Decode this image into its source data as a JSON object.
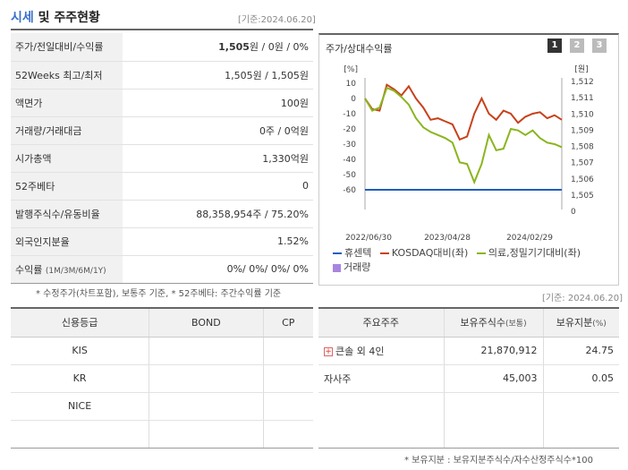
{
  "header": {
    "title_blue": "시세",
    "title_rest": " 및 주주현황",
    "date": "[기준:2024.06.20]"
  },
  "price_table": [
    {
      "label": "주가/전일대비/수익률",
      "value_bold": "1,505",
      "value_rest": "원 / 0원 / 0%"
    },
    {
      "label": "52Weeks 최고/최저",
      "value": "1,505원 / 1,505원"
    },
    {
      "label": "액면가",
      "value": "100원"
    },
    {
      "label": "거래량/거래대금",
      "value": "0주 / 0억원"
    },
    {
      "label": "시가총액",
      "value": "1,330억원"
    },
    {
      "label": "52주베타",
      "value": "0"
    },
    {
      "label": "발행주식수/유동비율",
      "value": "88,358,954주 / 75.20%"
    },
    {
      "label": "외국인지분율",
      "value": "1.52%"
    },
    {
      "label": "수익률",
      "label_small": "(1M/3M/6M/1Y)",
      "value": "0%/ 0%/ 0%/ 0%"
    }
  ],
  "note1": "* 수정주가(차트포함), 보통주 기준, * 52주베타: 주간수익률 기준",
  "chart": {
    "title": "주가/상대수익률",
    "tabs": [
      "1",
      "2",
      "3"
    ],
    "left_unit": "[%]",
    "right_unit": "[원]"
  },
  "chart_data": {
    "type": "line",
    "x_ticks": [
      "2022/06/30",
      "2023/04/28",
      "2024/02/29"
    ],
    "y_left_ticks": [
      10,
      0,
      -10,
      -20,
      -30,
      -40,
      -50,
      -60
    ],
    "y_right_ticks": [
      "1,512",
      "1,511",
      "1,510",
      "1,509",
      "1,508",
      "1,507",
      "1,506",
      "1,505",
      "0"
    ],
    "ylim_left": [
      -60,
      10
    ],
    "series": [
      {
        "name": "휴센텍",
        "color": "#1f5fbf",
        "axis": "left",
        "values": [
          -60,
          -60,
          -60,
          -60,
          -60,
          -60,
          -60,
          -60,
          -60,
          -60,
          -60,
          -60,
          -60,
          -60,
          -60,
          -60,
          -60,
          -60,
          -60,
          -60,
          -60,
          -60,
          -60,
          -60,
          -60,
          -60,
          -60,
          -60
        ]
      },
      {
        "name": "KOSDAQ대비(좌)",
        "color": "#c8411b",
        "axis": "left",
        "values": [
          0,
          -7,
          -8,
          9,
          6,
          2,
          8,
          0,
          -6,
          -14,
          -13,
          -15,
          -17,
          -27,
          -25,
          -10,
          0,
          -10,
          -14,
          -8,
          -10,
          -16,
          -12,
          -10,
          -9,
          -13,
          -11,
          -14
        ]
      },
      {
        "name": "의료,정밀기기대비(좌)",
        "color": "#8ab51e",
        "axis": "left",
        "values": [
          0,
          -8,
          -6,
          7,
          5,
          1,
          -4,
          -13,
          -19,
          -22,
          -24,
          -26,
          -29,
          -42,
          -43,
          -55,
          -43,
          -24,
          -34,
          -33,
          -20,
          -21,
          -24,
          -21,
          -26,
          -29,
          -30,
          -32
        ]
      }
    ],
    "legend": [
      {
        "name": "휴센텍",
        "color": "#1f5fbf",
        "kind": "line"
      },
      {
        "name": "KOSDAQ대비(좌)",
        "color": "#c8411b",
        "kind": "line"
      },
      {
        "name": "의료,정밀기기대비(좌)",
        "color": "#8ab51e",
        "kind": "line"
      },
      {
        "name": "거래량",
        "color": "#a985e0",
        "kind": "square"
      }
    ]
  },
  "date2": "[기준: 2024.06.20]",
  "credit_table": {
    "headers": [
      "신용등급",
      "BOND",
      "CP"
    ],
    "rows": [
      [
        "KIS",
        "",
        ""
      ],
      [
        "KR",
        "",
        ""
      ],
      [
        "NICE",
        "",
        ""
      ],
      [
        "",
        "",
        ""
      ]
    ]
  },
  "holder_table": {
    "headers": [
      "주요주주",
      "보유주식수",
      "(보통)",
      "보유지분",
      "(%)"
    ],
    "rows": [
      {
        "name": "큰솔 외 4인",
        "shares": "21,870,912",
        "pct": "24.75",
        "plus": "+"
      },
      {
        "name": "자사주",
        "shares": "45,003",
        "pct": "0.05"
      }
    ]
  },
  "note2": "* 보유지분 : 보유지분주식수/자수산정주식수*100"
}
